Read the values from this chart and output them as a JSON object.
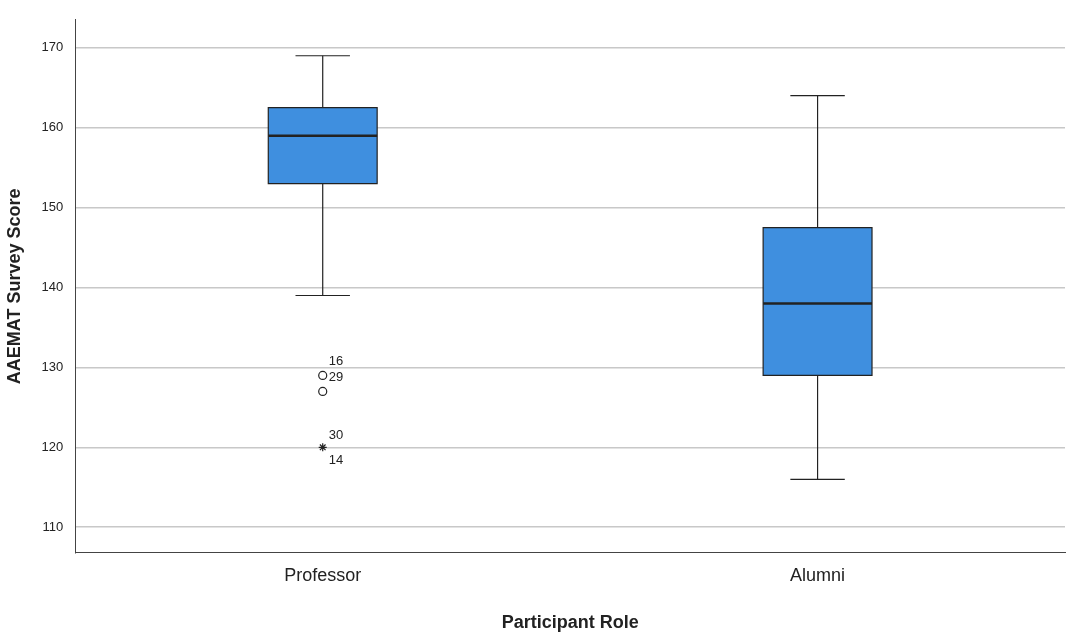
{
  "chart_data": {
    "type": "box",
    "xlabel": "Participant Role",
    "ylabel": "AAEMAT Survey Score",
    "categories": [
      "Professor",
      "Alumni"
    ],
    "boxes": [
      {
        "low": 139,
        "q1": 153,
        "median": 159,
        "q3": 162.5,
        "high": 169,
        "outliers": [
          129,
          127,
          120
        ]
      },
      {
        "low": 116,
        "q1": 129,
        "median": 138,
        "q3": 147.5,
        "high": 164
      }
    ],
    "color": "#3f8fdf",
    "ylim": [
      106.8,
      173.5
    ],
    "yticks": [
      110,
      120,
      130,
      140,
      150,
      160,
      170
    ],
    "grid": "y",
    "annotations": [
      "16",
      "29",
      "30",
      "14"
    ]
  }
}
